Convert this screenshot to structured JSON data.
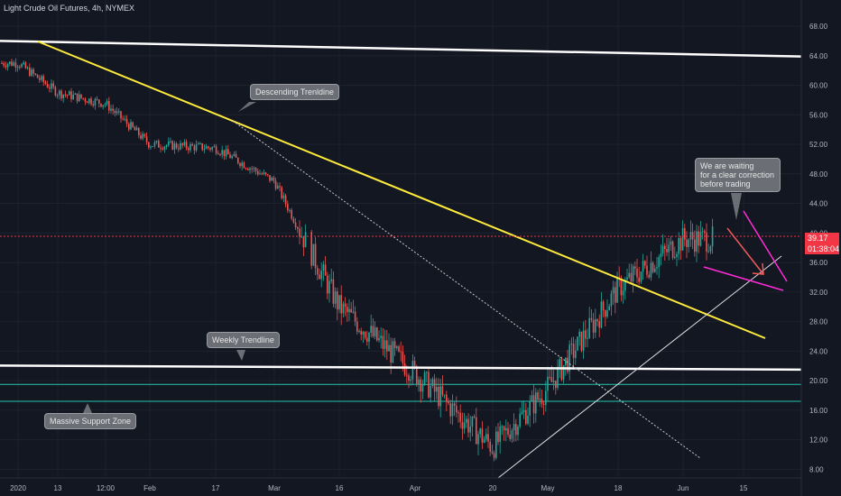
{
  "header": {
    "title": "Light Crude Oil Futures, 4h, NYMEX"
  },
  "price_tags": {
    "last_price": "39.17",
    "countdown": "01:38:04"
  },
  "callouts": {
    "descending": "Descending Trenldine",
    "weekly": "Weekly Trendline",
    "support": "Massive Support Zone",
    "waiting": "We are waiting\nfor a clear correction\nbefore trading"
  },
  "colors": {
    "background": "#131722",
    "up": "#26a69a",
    "down": "#ef5350",
    "descending_trendline": "#ffeb3b",
    "weekly_trendline": "#ffffff",
    "support_zone": "#26c6b0",
    "arrows": "#ff2bd6",
    "last_price_line": "#f23645"
  },
  "chart_data": {
    "type": "candlestick",
    "y_axis": {
      "ticks": [
        "68.00",
        "64.00",
        "60.00",
        "56.00",
        "52.00",
        "48.00",
        "44.00",
        "40.00",
        "36.00",
        "32.00",
        "28.00",
        "24.00",
        "20.00",
        "16.00",
        "12.00",
        "8.00"
      ],
      "ylim": [
        6,
        70
      ]
    },
    "x_axis": {
      "ticks": [
        "2020",
        "13",
        "12:00",
        "Feb",
        "17",
        "Mar",
        "16",
        "Apr",
        "20",
        "May",
        "18",
        "Jun",
        "15"
      ]
    },
    "close_path": [
      {
        "x": "2020",
        "y": 63.0
      },
      {
        "x": "13",
        "y": 59.0
      },
      {
        "x": "12:00",
        "y": 57.5
      },
      {
        "x": "Feb",
        "y": 52.0
      },
      {
        "x": "17",
        "y": 51.5
      },
      {
        "x": "Mar",
        "y": 47.0
      },
      {
        "x": "16",
        "y": 30.0
      },
      {
        "x": "Apr",
        "y": 21.0
      },
      {
        "x": "20",
        "y": 11.0
      },
      {
        "x": "May",
        "y": 19.0
      },
      {
        "x": "18",
        "y": 32.5
      },
      {
        "x": "Jun",
        "y": 39.17
      }
    ],
    "last_price": 39.17
  }
}
